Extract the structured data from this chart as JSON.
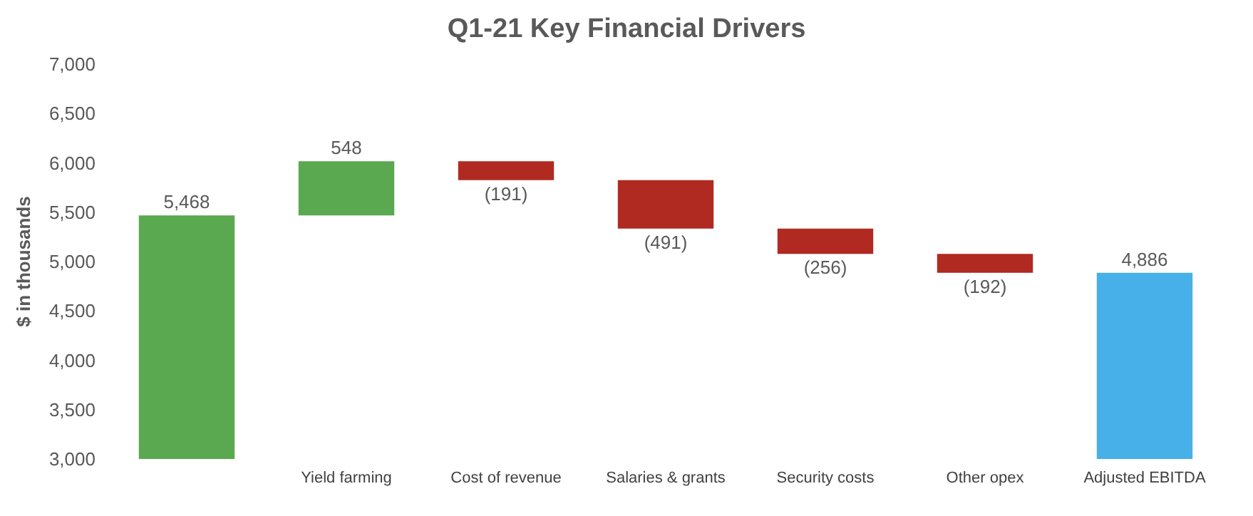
{
  "chart_data": {
    "type": "bar",
    "title": "Q1-21 Key Financial Drivers",
    "ylabel": "$ in thousands",
    "categories": [
      null,
      "Yield farming",
      "Cost of revenue",
      "Salaries & grants",
      "Security costs",
      "Other opex",
      "Adjusted EBITDA"
    ],
    "values": [
      5468,
      548,
      -191,
      -491,
      -256,
      -192,
      4886
    ],
    "base": [
      null,
      5468,
      6016,
      5825,
      5334,
      5078,
      null
    ],
    "colors": [
      "#5aa850",
      "#5aa850",
      "#b02a22",
      "#b02a22",
      "#b02a22",
      "#b02a22",
      "#47b0e8"
    ],
    "value_labels": [
      "5,468",
      "548",
      "(191)",
      "(491)",
      "(256)",
      "(192)",
      "4,886"
    ],
    "ylim": [
      3000,
      7000
    ],
    "yticks": [
      {
        "value": 3000,
        "label": "3,000"
      },
      {
        "value": 3500,
        "label": "3,500"
      },
      {
        "value": 4000,
        "label": "4,000"
      },
      {
        "value": 4500,
        "label": "4,500"
      },
      {
        "value": 5000,
        "label": "5,000"
      },
      {
        "value": 5500,
        "label": "5,500"
      },
      {
        "value": 6000,
        "label": "6,000"
      },
      {
        "value": 6500,
        "label": "6,500"
      },
      {
        "value": 7000,
        "label": "7,000"
      }
    ]
  }
}
